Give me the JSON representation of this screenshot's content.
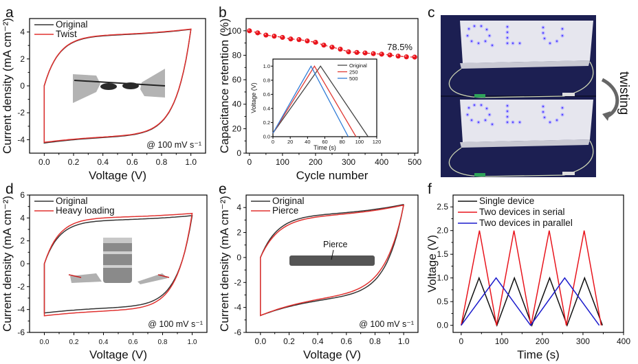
{
  "chart_data": [
    {
      "id": "a",
      "type": "line",
      "panel_label": "a",
      "title": "",
      "xlabel": "Voltage (V)",
      "ylabel": "Current density (mA cm⁻²)",
      "xlim": [
        -0.1,
        1.1
      ],
      "ylim": [
        -5,
        5
      ],
      "xticks": [
        0.0,
        0.2,
        0.4,
        0.6,
        0.8,
        1.0
      ],
      "xtick_labels": [
        "0.0",
        "0.2",
        "0.4",
        "0.6",
        "0.8",
        "1.0"
      ],
      "yticks": [
        -4,
        -2,
        0,
        2,
        4
      ],
      "ytick_labels": [
        "-4",
        "-2",
        "0",
        "2",
        "4"
      ],
      "legend_position": "top-left",
      "annotation": "@ 100 mV s⁻¹",
      "inset_image": "twisted fiber device held by two clips",
      "series": [
        {
          "name": "Original",
          "color": "#333333",
          "shape": {
            "upper_start": 0.0,
            "upper_plateau": 3.75,
            "upper_end": 4.2,
            "lower_end": -3.75,
            "lower_start": -4.25,
            "knee": 0.1
          }
        },
        {
          "name": "Twist",
          "color": "#e0302e",
          "shape": {
            "upper_start": 0.0,
            "upper_plateau": 3.78,
            "upper_end": 4.22,
            "lower_end": -3.72,
            "lower_start": -4.2,
            "knee": 0.1
          }
        }
      ]
    },
    {
      "id": "b",
      "type": "line",
      "panel_label": "b",
      "title": "",
      "xlabel": "Cycle number",
      "ylabel": "Capacitance retention (%)",
      "xlim": [
        -10,
        510
      ],
      "ylim": [
        0,
        110
      ],
      "xticks": [
        0,
        100,
        200,
        300,
        400,
        500
      ],
      "xtick_labels": [
        "0",
        "100",
        "200",
        "300",
        "400",
        "500"
      ],
      "yticks": [
        0,
        20,
        40,
        60,
        80,
        100
      ],
      "ytick_labels": [
        "0",
        "20",
        "40",
        "60",
        "80",
        "100"
      ],
      "annotation": "78.5%",
      "series": [
        {
          "name": "Capacitance retention",
          "color": "#e8141c",
          "x": [
            0,
            25,
            50,
            75,
            100,
            125,
            150,
            175,
            200,
            225,
            250,
            275,
            300,
            325,
            350,
            375,
            400,
            425,
            450,
            475,
            500
          ],
          "y": [
            100,
            98.3,
            96.5,
            95.6,
            94.6,
            93.3,
            92.8,
            91.7,
            90.6,
            88.3,
            86.6,
            85.0,
            82.8,
            82.3,
            81.9,
            81.3,
            80.9,
            80.2,
            79.3,
            78.7,
            78.5
          ]
        }
      ],
      "inset": {
        "type": "line",
        "xlabel": "Time (s)",
        "ylabel": "Voltage (V)",
        "xlim": [
          0,
          120
        ],
        "ylim": [
          0,
          1.1
        ],
        "xticks": [
          0,
          20,
          40,
          60,
          80,
          100,
          120
        ],
        "xtick_labels": [
          "0",
          "20",
          "40",
          "60",
          "80",
          "100",
          "120"
        ],
        "yticks": [
          0.0,
          0.2,
          0.4,
          0.6,
          0.8,
          1.0
        ],
        "ytick_labels": [
          "0.0",
          "0.2",
          "0.4",
          "0.6",
          "0.8",
          "1.0"
        ],
        "legend_position": "top-right",
        "series": [
          {
            "name": "Original",
            "color": "#444444",
            "x": [
              0,
              55,
              110
            ],
            "y": [
              0.05,
              1.0,
              0.0
            ]
          },
          {
            "name": "250",
            "color": "#e03a34",
            "x": [
              0,
              48,
              96
            ],
            "y": [
              0.05,
              1.0,
              0.0
            ]
          },
          {
            "name": "500",
            "color": "#2e7bd6",
            "x": [
              0,
              44,
              87
            ],
            "y": [
              0.05,
              1.0,
              0.0
            ]
          }
        ]
      }
    },
    {
      "id": "d",
      "type": "line",
      "panel_label": "d",
      "title": "",
      "xlabel": "Voltage (V)",
      "ylabel": "Current density (mA cm⁻²)",
      "xlim": [
        -0.1,
        1.1
      ],
      "ylim": [
        -6,
        6
      ],
      "xticks": [
        0.0,
        0.2,
        0.4,
        0.6,
        0.8,
        1.0
      ],
      "xtick_labels": [
        "0.0",
        "0.2",
        "0.4",
        "0.6",
        "0.8",
        "1.0"
      ],
      "yticks": [
        -6,
        -4,
        -2,
        0,
        2,
        4,
        6
      ],
      "ytick_labels": [
        "-6",
        "-4",
        "-2",
        "0",
        "2",
        "4",
        "6"
      ],
      "legend_position": "top-left",
      "annotation": "@ 100 mV s⁻¹",
      "inset_image": "metal weight on fiber device between two clips",
      "series": [
        {
          "name": "Original",
          "color": "#333333",
          "shape": {
            "upper_start": 0.0,
            "upper_plateau": 3.8,
            "upper_end": 4.2,
            "lower_end": -3.8,
            "lower_start": -4.3,
            "knee": 0.1
          }
        },
        {
          "name": "Heavy loading",
          "color": "#e0302e",
          "shape": {
            "upper_start": 0.0,
            "upper_plateau": 4.05,
            "upper_end": 4.4,
            "lower_end": -4.05,
            "lower_start": -4.55,
            "knee": 0.1
          }
        }
      ]
    },
    {
      "id": "e",
      "type": "line",
      "panel_label": "e",
      "title": "",
      "xlabel": "Voltage (V)",
      "ylabel": "Current density (mA cm⁻²)",
      "xlim": [
        -0.1,
        1.1
      ],
      "ylim": [
        -6,
        5
      ],
      "xticks": [
        0.0,
        0.2,
        0.4,
        0.6,
        0.8,
        1.0
      ],
      "xtick_labels": [
        "0.0",
        "0.2",
        "0.4",
        "0.6",
        "0.8",
        "1.0"
      ],
      "yticks": [
        -6,
        -4,
        -2,
        0,
        2,
        4
      ],
      "ytick_labels": [
        "-6",
        "-4",
        "-2",
        "0",
        "2",
        "4"
      ],
      "legend_position": "top-left",
      "annotation": "@ 100 mV s⁻¹",
      "inset_label": "Pierce",
      "inset_image": "pierced fiber device",
      "series": [
        {
          "name": "Original",
          "color": "#333333",
          "shape": {
            "upper_start": 0.0,
            "upper_plateau": 3.45,
            "upper_end": 4.25,
            "lower_end": -3.2,
            "lower_start": -4.65,
            "knee": 0.12
          }
        },
        {
          "name": "Pierce",
          "color": "#e0302e",
          "shape": {
            "upper_start": 0.0,
            "upper_plateau": 3.35,
            "upper_end": 4.2,
            "lower_end": -3.1,
            "lower_start": -4.65,
            "knee": 0.13
          }
        }
      ]
    },
    {
      "id": "f",
      "type": "line",
      "panel_label": "f",
      "title": "",
      "xlabel": "Time (s)",
      "ylabel": "Voltage (V)",
      "xlim": [
        -20,
        400
      ],
      "ylim": [
        -0.15,
        2.75
      ],
      "xticks": [
        0,
        100,
        200,
        300,
        400
      ],
      "xtick_labels": [
        "0",
        "100",
        "200",
        "300",
        "400"
      ],
      "yticks": [
        0.0,
        0.5,
        1.0,
        1.5,
        2.0,
        2.5
      ],
      "ytick_labels": [
        "0.0",
        "0.5",
        "1.0",
        "1.5",
        "2.0",
        "2.5"
      ],
      "legend_position": "top-left",
      "series": [
        {
          "name": "Single device",
          "color": "#111111",
          "x": [
            0,
            44,
            88,
            131,
            174,
            218,
            261,
            304,
            348
          ],
          "y": [
            0,
            1,
            0,
            1,
            0,
            1,
            0,
            1,
            0
          ]
        },
        {
          "name": "Two devices in serial",
          "color": "#e8141c",
          "x": [
            0,
            45,
            87,
            130,
            172,
            217,
            259,
            303,
            345
          ],
          "y": [
            0,
            2,
            0,
            2,
            0,
            2,
            0,
            2,
            0
          ]
        },
        {
          "name": "Two devices in parallel",
          "color": "#1a1acc",
          "x": [
            0,
            86,
            171,
            255,
            340
          ],
          "y": [
            0,
            1,
            0,
            1,
            0
          ]
        }
      ]
    }
  ],
  "photo_c": {
    "panel_label": "c",
    "description": "Fabric box with blue LED letters lit before and after twisting",
    "led_text": "QLU",
    "arrow_label": "twisting"
  }
}
